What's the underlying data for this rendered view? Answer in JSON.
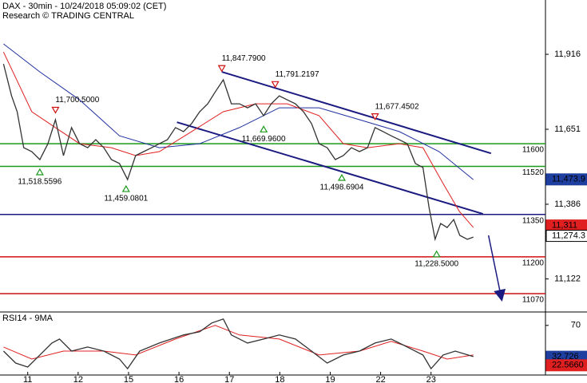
{
  "chart_data": [
    {
      "type": "line",
      "title": "DAX - 30min - 10/24/2018 05:09:02 (CET)",
      "subtitle": "Research © TRADING CENTRAL",
      "xlim": [
        -0.55,
        10.27
      ],
      "ylim": [
        11008,
        12108
      ],
      "yticks": [
        {
          "value": 11916,
          "label": "11,916"
        },
        {
          "value": 11651,
          "label": "11,651"
        },
        {
          "value": 11386,
          "label": "11,386"
        },
        {
          "value": 11122,
          "label": "11,122"
        }
      ],
      "series": [
        {
          "name": "DAX",
          "color": "#333333",
          "x": [
            -0.48,
            -0.32,
            -0.21,
            -0.08,
            0.08,
            0.24,
            0.4,
            0.55,
            0.71,
            0.87,
            1.03,
            1.19,
            1.35,
            1.51,
            1.66,
            1.82,
            1.98,
            2.14,
            2.3,
            2.46,
            2.61,
            2.77,
            2.93,
            3.09,
            3.25,
            3.41,
            3.57,
            3.72,
            3.88,
            4.04,
            4.2,
            4.36,
            4.52,
            4.68,
            4.83,
            4.99,
            5.15,
            5.31,
            5.47,
            5.63,
            5.78,
            5.94,
            6.1,
            6.26,
            6.42,
            6.58,
            6.74,
            6.89,
            7.05,
            7.21,
            7.37,
            7.53,
            7.69,
            7.84,
            7.96,
            8.08,
            8.19,
            8.32,
            8.45,
            8.57,
            8.72,
            8.84
          ],
          "values": [
            11882,
            11769,
            11713,
            11586,
            11572,
            11544,
            11600,
            11685,
            11558,
            11657,
            11600,
            11586,
            11614,
            11586,
            11544,
            11530,
            11473,
            11558,
            11572,
            11586,
            11600,
            11614,
            11657,
            11643,
            11671,
            11713,
            11741,
            11783,
            11826,
            11741,
            11741,
            11727,
            11741,
            11699,
            11741,
            11769,
            11755,
            11741,
            11713,
            11671,
            11600,
            11586,
            11544,
            11558,
            11586,
            11572,
            11586,
            11657,
            11643,
            11628,
            11614,
            11600,
            11530,
            11516,
            11375,
            11262,
            11318,
            11304,
            11332,
            11276,
            11262,
            11270
          ]
        },
        {
          "name": "MA fast",
          "color": "#e02020",
          "x": [
            -0.48,
            0.08,
            0.55,
            1.03,
            1.66,
            2.14,
            2.61,
            3.25,
            3.88,
            4.52,
            5.15,
            5.78,
            6.26,
            6.74,
            7.37,
            7.84,
            8.24,
            8.56,
            8.84
          ],
          "values": [
            11924,
            11713,
            11657,
            11600,
            11586,
            11558,
            11572,
            11643,
            11713,
            11741,
            11741,
            11699,
            11600,
            11586,
            11600,
            11586,
            11459,
            11361,
            11304
          ]
        },
        {
          "name": "MA slow",
          "color": "#2030a0",
          "x": [
            -0.48,
            0.24,
            1.03,
            1.82,
            2.61,
            3.41,
            4.2,
            4.99,
            5.78,
            6.58,
            7.37,
            8.16,
            8.84
          ],
          "values": [
            11953,
            11854,
            11755,
            11628,
            11586,
            11600,
            11657,
            11727,
            11727,
            11685,
            11643,
            11572,
            11473
          ]
        }
      ],
      "levels": [
        {
          "value": 11600,
          "label": "11600",
          "color": "#1a9a1a"
        },
        {
          "value": 11520,
          "label": "11520",
          "color": "#1a9a1a"
        },
        {
          "value": 11350,
          "label": "11350",
          "color": "#1a1a80"
        },
        {
          "value": 11200,
          "label": "11200",
          "color": "#d01010"
        },
        {
          "value": 11070,
          "label": "11070",
          "color": "#d01010"
        }
      ],
      "channel": [
        {
          "x": [
            3.85,
            9.19
          ],
          "y": [
            11854,
            11566
          ],
          "color": "#1a1a80"
        },
        {
          "x": [
            2.96,
            9.03
          ],
          "y": [
            11676,
            11352
          ],
          "color": "#1a1a80"
        }
      ],
      "arrow": {
        "x": [
          9.14,
          9.4
        ],
        "y": [
          11276,
          11050
        ],
        "color": "#1a1a80"
      },
      "annotations": [
        {
          "label": "11,847.7900",
          "x": 3.85,
          "y": 11847.79,
          "kind": "high"
        },
        {
          "label": "11,791.2197",
          "x": 4.91,
          "y": 11791.2197,
          "kind": "high"
        },
        {
          "label": "11,677.4502",
          "x": 6.89,
          "y": 11677.4502,
          "kind": "high"
        },
        {
          "label": "11,700.5000",
          "x": 0.55,
          "y": 11700.5,
          "kind": "high"
        },
        {
          "label": "11,518.5596",
          "x": 0.24,
          "y": 11518.5596,
          "kind": "low"
        },
        {
          "label": "11,459.0801",
          "x": 1.95,
          "y": 11459.0801,
          "kind": "low"
        },
        {
          "label": "11,669.9600",
          "x": 4.68,
          "y": 11669.96,
          "kind": "low"
        },
        {
          "label": "11,498.6904",
          "x": 6.23,
          "y": 11498.6904,
          "kind": "low"
        },
        {
          "label": "11,228.5000",
          "x": 8.11,
          "y": 11228.5,
          "kind": "low"
        }
      ],
      "tags": [
        {
          "label": "11,473.9",
          "value": 11473.9,
          "color": "#1f3fa0"
        },
        {
          "label": "11,311",
          "value": 11311,
          "color": "#e02020"
        },
        {
          "label": "11,274.3",
          "value": 11274.3,
          "color": "#ffffff"
        }
      ]
    },
    {
      "type": "line",
      "title": "RSI14 - 9MA",
      "xlim": [
        -0.55,
        10.27
      ],
      "ylim": [
        11,
        85
      ],
      "yticks": [
        70
      ],
      "xticks": [
        {
          "value": 0,
          "label": "11"
        },
        {
          "value": 1,
          "label": "12"
        },
        {
          "value": 2,
          "label": "15"
        },
        {
          "value": 3,
          "label": "16"
        },
        {
          "value": 4,
          "label": "17"
        },
        {
          "value": 5,
          "label": "18"
        },
        {
          "value": 6,
          "label": "19"
        },
        {
          "value": 7,
          "label": "22"
        },
        {
          "value": 8,
          "label": "23"
        }
      ],
      "series": [
        {
          "name": "RSI14",
          "color": "#333333",
          "x": [
            -0.48,
            -0.24,
            0,
            0.24,
            0.48,
            0.63,
            0.87,
            1.19,
            1.51,
            1.82,
            1.98,
            2.22,
            2.61,
            3.09,
            3.41,
            3.65,
            3.88,
            4.04,
            4.36,
            4.68,
            4.99,
            5.31,
            5.63,
            5.94,
            6.26,
            6.58,
            6.89,
            7.21,
            7.53,
            7.84,
            8.0,
            8.24,
            8.48,
            8.84
          ],
          "values": [
            39.5,
            25.2,
            20.5,
            34.8,
            49,
            53.8,
            39.5,
            44.3,
            39.5,
            30,
            18.6,
            39.5,
            49,
            58.6,
            62.4,
            72.9,
            77.6,
            58.6,
            49,
            53.8,
            58.6,
            53.8,
            39.5,
            25.2,
            34.8,
            39.5,
            49,
            53.8,
            44.3,
            34.8,
            18.6,
            34.8,
            39.5,
            32.9
          ]
        },
        {
          "name": "9MA",
          "color": "#e02020",
          "x": [
            -0.48,
            0.08,
            0.71,
            1.51,
            2.14,
            2.93,
            3.72,
            4.2,
            4.99,
            5.78,
            6.58,
            7.21,
            7.84,
            8.32,
            8.84
          ],
          "values": [
            44.3,
            30,
            39.5,
            39.5,
            34.8,
            53.8,
            70,
            58.6,
            53.8,
            34.8,
            39.5,
            51,
            39.5,
            30,
            34.8
          ]
        }
      ],
      "tags": [
        {
          "label": "32.726",
          "value": 32.726,
          "color": "#1f3fa0"
        },
        {
          "label": "22.5660",
          "value": 22.566,
          "color": "#e02020"
        }
      ]
    }
  ]
}
